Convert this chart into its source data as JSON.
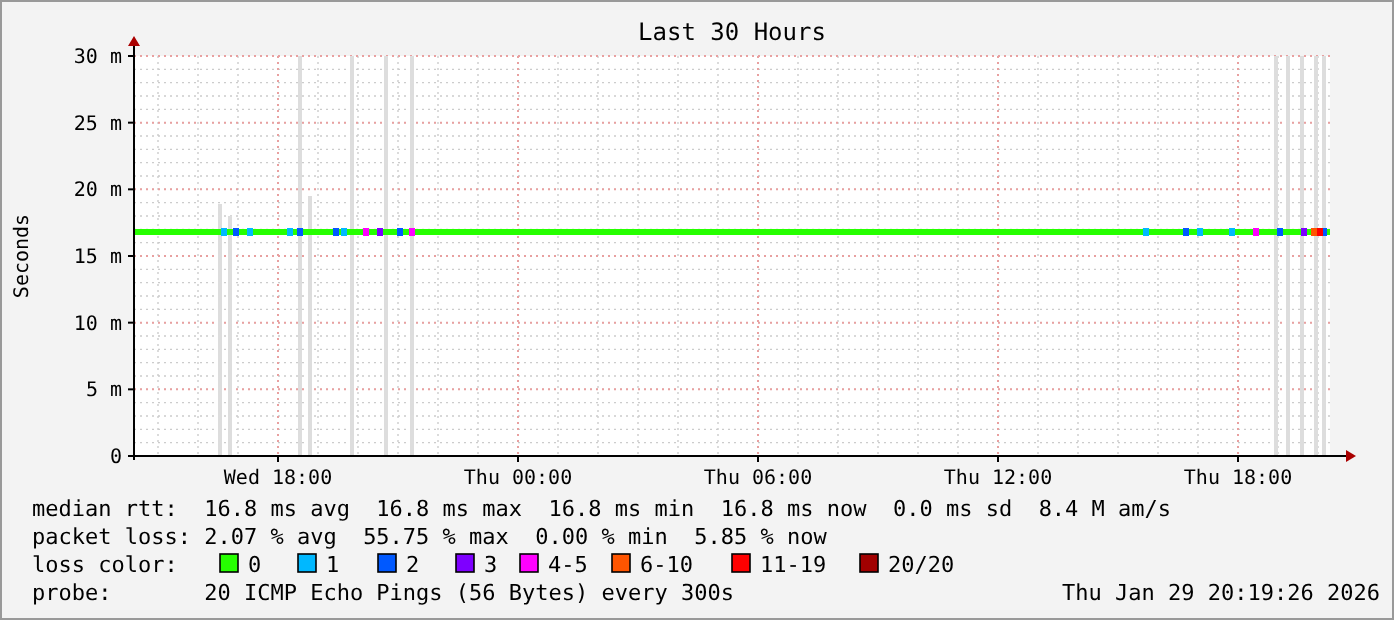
{
  "chart_data": {
    "type": "line",
    "title": "Last 30 Hours",
    "ylabel": "Seconds",
    "xlim": [
      "2026-01-28T14:24",
      "2026-01-29T20:18"
    ],
    "xticks": [
      {
        "value": "2026-01-28T18:00",
        "label": "Wed 18:00"
      },
      {
        "value": "2026-01-29T00:00",
        "label": "Thu 00:00"
      },
      {
        "value": "2026-01-29T06:00",
        "label": "Thu 06:00"
      },
      {
        "value": "2026-01-29T12:00",
        "label": "Thu 12:00"
      },
      {
        "value": "2026-01-29T18:00",
        "label": "Thu 18:00"
      }
    ],
    "ylim": [
      0,
      30
    ],
    "yticks": [
      0,
      {
        "value": 5,
        "label": "5 m"
      },
      {
        "value": 10,
        "label": "10 m"
      },
      {
        "value": 15,
        "label": "15 m"
      },
      {
        "value": 20,
        "label": "20 m"
      },
      {
        "value": 25,
        "label": "25 m"
      },
      {
        "value": 30,
        "label": "30 m"
      }
    ],
    "grid": true,
    "legend": "bottom",
    "legend_title": "loss color:",
    "series": [
      {
        "type": "bar",
        "color": "#dddddd",
        "x": [
          "2026-01-28T16:33",
          "2026-01-28T16:48",
          "2026-01-28T18:33",
          "2026-01-28T18:48",
          "2026-01-28T19:51",
          "2026-01-28T20:42",
          "2026-01-28T21:21",
          "2026-01-29T18:57",
          "2026-01-29T19:15",
          "2026-01-29T19:36",
          "2026-01-29T19:57",
          "2026-01-29T20:09"
        ],
        "values": [
          18.9,
          18,
          30,
          19.5,
          30,
          30,
          30,
          30,
          30,
          30,
          30,
          30
        ]
      },
      {
        "name": "0",
        "color": "#26ff00",
        "x": [
          "2026-01-28T14:24",
          "2026-01-29T20:18"
        ],
        "values": [
          16.8,
          16.8
        ]
      },
      {
        "name": "1",
        "type": "scatter",
        "marker": "square",
        "color": "#00b8ff",
        "x": [
          "2026-01-28T16:39",
          "2026-01-28T17:18",
          "2026-01-28T18:18",
          "2026-01-28T19:39",
          "2026-01-29T15:42",
          "2026-01-29T17:03",
          "2026-01-29T17:51"
        ],
        "values": [
          16.8,
          16.8,
          16.8,
          16.8,
          16.8,
          16.8,
          16.8
        ]
      },
      {
        "name": "2",
        "type": "scatter",
        "marker": "square",
        "color": "#0059ff",
        "x": [
          "2026-01-28T16:57",
          "2026-01-28T18:33",
          "2026-01-28T19:27",
          "2026-01-28T21:03",
          "2026-01-29T16:42",
          "2026-01-29T19:03",
          "2026-01-29T20:09"
        ],
        "values": [
          16.8,
          16.8,
          16.8,
          16.8,
          16.8,
          16.8,
          16.8
        ]
      },
      {
        "name": "3",
        "type": "scatter",
        "marker": "square",
        "color": "#7e00ff",
        "x": [
          "2026-01-28T20:33",
          "2026-01-29T19:39"
        ],
        "values": [
          16.8,
          16.8
        ]
      },
      {
        "name": "4-5",
        "type": "scatter",
        "marker": "square",
        "color": "#ff00ff",
        "x": [
          "2026-01-28T20:12",
          "2026-01-28T21:21",
          "2026-01-29T18:27"
        ],
        "values": [
          16.8,
          16.8,
          16.8
        ]
      },
      {
        "name": "6-10",
        "type": "scatter",
        "marker": "square",
        "color": "#ff5500",
        "x": [
          "2026-01-29T19:54"
        ],
        "values": [
          16.8
        ]
      },
      {
        "name": "11-19",
        "type": "scatter",
        "marker": "square",
        "color": "#ff0000",
        "x": [
          "2026-01-29T20:03"
        ],
        "values": [
          16.8
        ]
      },
      {
        "name": "20/20",
        "type": "scatter",
        "marker": "square",
        "color": "#a10000"
      }
    ],
    "annotations": [
      "median rtt:  16.8 ms avg  16.8 ms max  16.8 ms min  16.8 ms now  0.0 ms sd  8.4 M am/s",
      "packet loss: 2.07 % avg  55.75 % max  0.00 % min  5.85 % now",
      "probe:       20 ICMP Echo Pings (56 Bytes) every 300s",
      "Thu Jan 29 20:19:26 2026"
    ]
  }
}
